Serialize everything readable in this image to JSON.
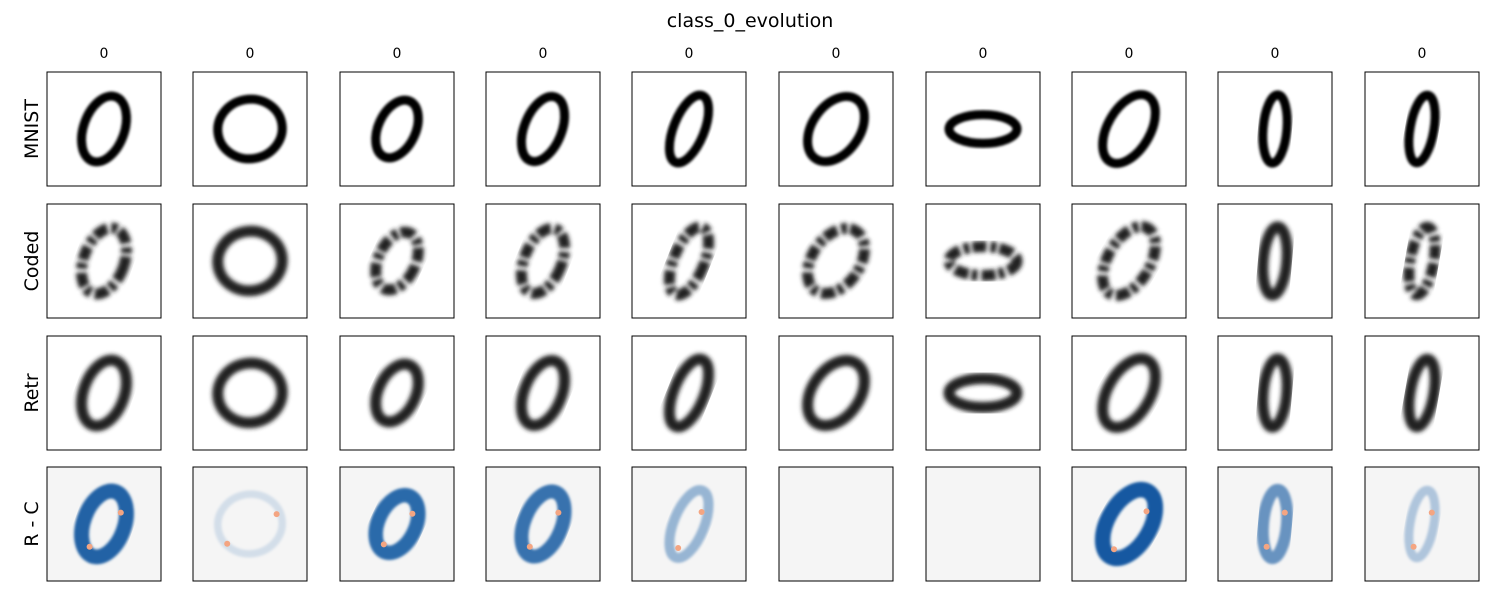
{
  "title": "class_0_evolution",
  "column_labels": [
    "0",
    "0",
    "0",
    "0",
    "0",
    "0",
    "0",
    "0",
    "0",
    "0"
  ],
  "row_labels": [
    "MNIST",
    "Coded",
    "Retr",
    "R - C"
  ]
}
